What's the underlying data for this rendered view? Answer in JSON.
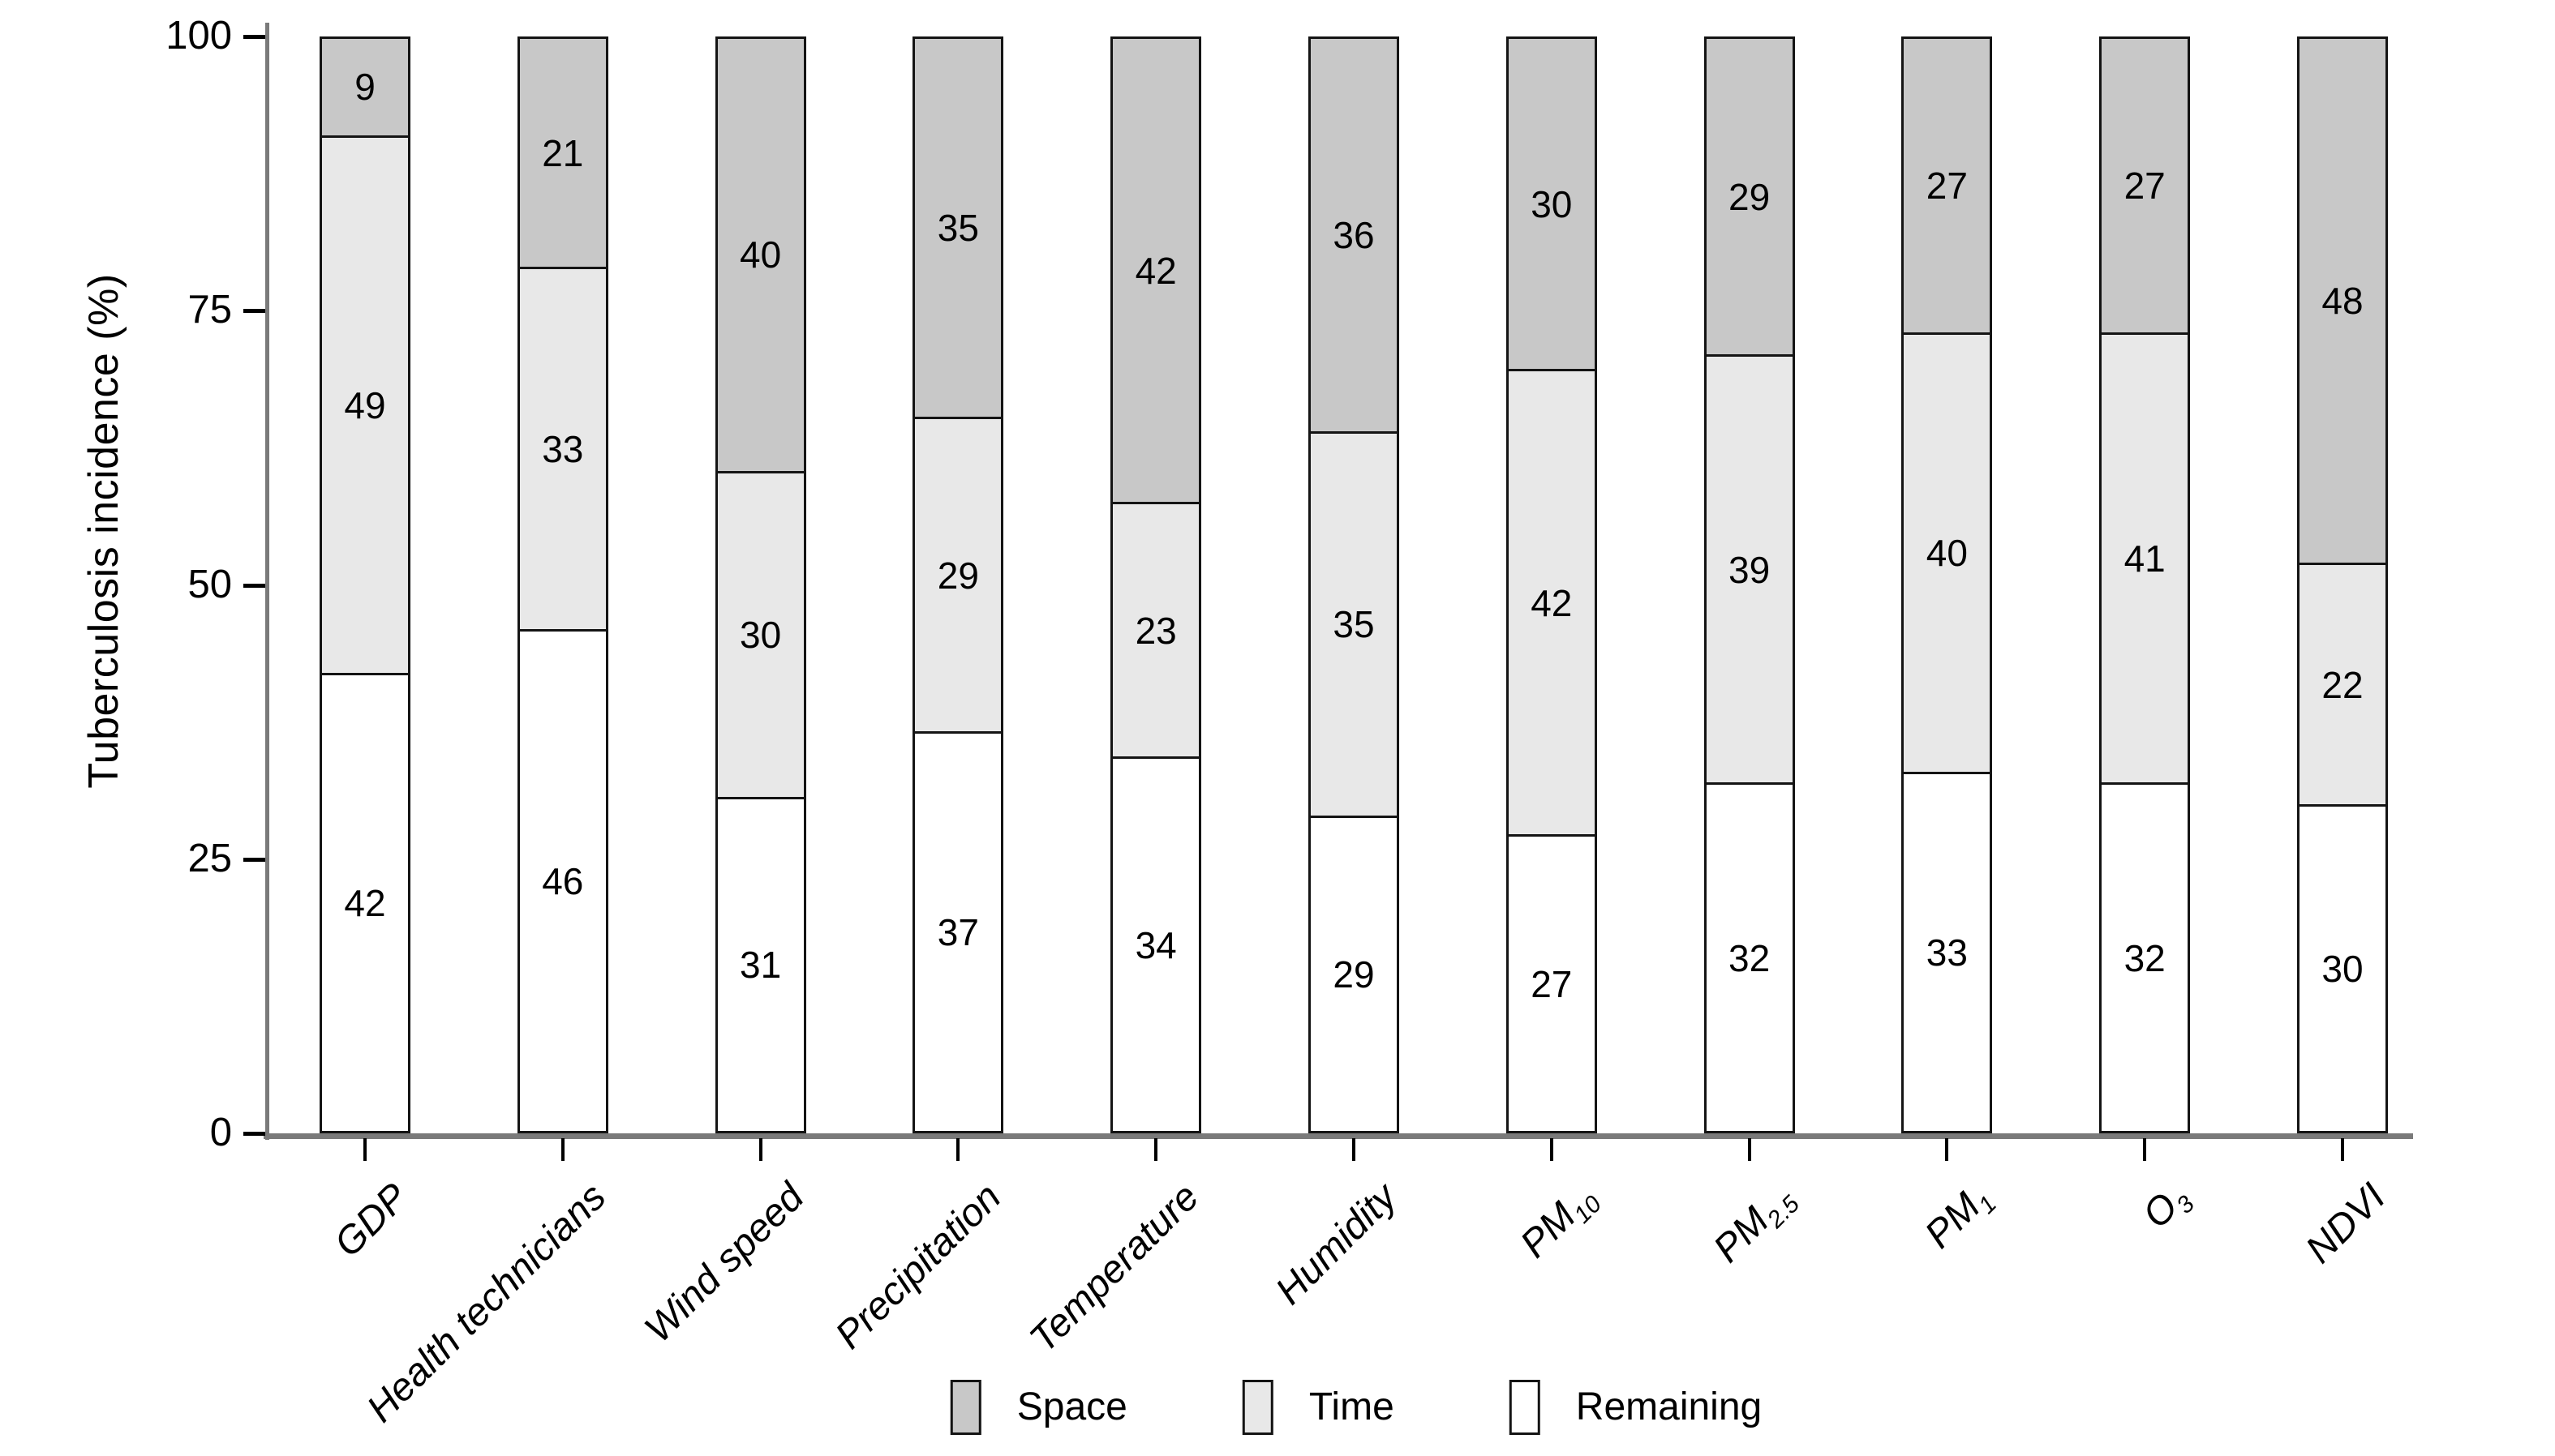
{
  "chart_data": {
    "type": "bar",
    "stacked": true,
    "title": "",
    "xlabel": "",
    "ylabel": "Tuberculosis incidence (%)",
    "ylim": [
      0,
      100
    ],
    "yticks": [
      0,
      25,
      50,
      75,
      100
    ],
    "grid": false,
    "legend_position": "bottom",
    "categories": [
      {
        "label": "GDP",
        "sub": ""
      },
      {
        "label": "Health technicians",
        "sub": ""
      },
      {
        "label": "Wind speed",
        "sub": ""
      },
      {
        "label": "Precipitation",
        "sub": ""
      },
      {
        "label": "Temperature",
        "sub": ""
      },
      {
        "label": "Humidity",
        "sub": ""
      },
      {
        "label": "PM",
        "sub": "10"
      },
      {
        "label": "PM",
        "sub": "2.5"
      },
      {
        "label": "PM",
        "sub": "1"
      },
      {
        "label": "O",
        "sub": "3"
      },
      {
        "label": "NDVI",
        "sub": ""
      }
    ],
    "series": [
      {
        "name": "Space",
        "color": "#c8c8c8",
        "values": [
          9,
          21,
          40,
          35,
          42,
          36,
          30,
          29,
          27,
          27,
          48
        ]
      },
      {
        "name": "Time",
        "color": "#e8e8e8",
        "values": [
          49,
          33,
          30,
          29,
          23,
          35,
          42,
          39,
          40,
          41,
          22
        ]
      },
      {
        "name": "Remaining",
        "color": "#ffffff",
        "values": [
          42,
          46,
          31,
          37,
          34,
          29,
          27,
          32,
          33,
          32,
          30
        ]
      }
    ]
  },
  "colors": {
    "axis_line": "#7a7a7a",
    "bar_border": "#141414",
    "text": "#000000"
  }
}
